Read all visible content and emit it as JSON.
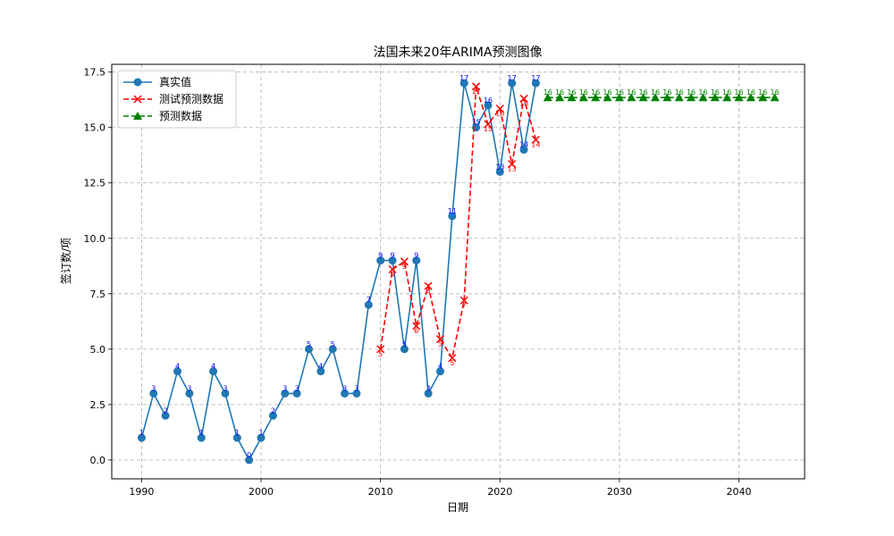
{
  "chart_data": {
    "type": "line",
    "title": "法国未来20年ARIMA预测图像",
    "xlabel": "日期",
    "ylabel": "签订数/项",
    "xlim": [
      1987.5,
      2045.5
    ],
    "ylim": [
      -0.85,
      17.85
    ],
    "xticks": [
      1990,
      2000,
      2010,
      2020,
      2030,
      2040
    ],
    "yticks": [
      0.0,
      2.5,
      5.0,
      7.5,
      10.0,
      12.5,
      15.0,
      17.5
    ],
    "ytick_labels": [
      "0.0",
      "2.5",
      "5.0",
      "7.5",
      "10.0",
      "12.5",
      "15.0",
      "17.5"
    ],
    "grid": true,
    "legend_position": "top-left",
    "series": [
      {
        "name": "真实值",
        "color": "#1f77b4",
        "style": "solid",
        "marker": "circle",
        "label_color": "#0000ff",
        "x": [
          1990,
          1991,
          1992,
          1993,
          1994,
          1995,
          1996,
          1997,
          1998,
          1999,
          2000,
          2001,
          2002,
          2003,
          2004,
          2005,
          2006,
          2007,
          2008,
          2009,
          2010,
          2011,
          2012,
          2013,
          2014,
          2015,
          2016,
          2017,
          2018,
          2019,
          2020,
          2021,
          2022,
          2023
        ],
        "values": [
          1,
          3,
          2,
          4,
          3,
          1,
          4,
          3,
          1,
          0,
          1,
          2,
          3,
          3,
          5,
          4,
          5,
          3,
          3,
          7,
          9,
          9,
          5,
          9,
          3,
          4,
          11,
          17,
          15,
          16,
          13,
          17,
          14,
          17
        ],
        "labels": [
          "1",
          "3",
          "2",
          "4",
          "3",
          "1",
          "4",
          "3",
          "1",
          "0",
          "1",
          "2",
          "3",
          "3",
          "5",
          "4",
          "5",
          "3",
          "3",
          "7",
          "9",
          "9",
          "5",
          "9",
          "3",
          "4",
          "11",
          "17",
          "15",
          "16",
          "13",
          "17",
          "14",
          "17"
        ]
      },
      {
        "name": "测试预测数据",
        "color": "#ff0000",
        "style": "dashed",
        "marker": "x",
        "label_color": "#ff0000",
        "x": [
          2010,
          2011,
          2012,
          2013,
          2014,
          2015,
          2016,
          2017,
          2018,
          2019,
          2020,
          2021,
          2022,
          2023
        ],
        "values": [
          5.0,
          8.6,
          8.95,
          6.05,
          7.85,
          5.45,
          4.6,
          7.2,
          16.85,
          15.15,
          15.85,
          13.35,
          16.3,
          14.45
        ],
        "labels": [
          "5",
          "9",
          "9",
          "6",
          "8",
          "5",
          "5",
          "7",
          "17",
          "15",
          "16",
          "13",
          "16",
          "14"
        ]
      },
      {
        "name": "预测数据",
        "color": "#008000",
        "style": "dashed",
        "marker": "triangle",
        "label_color": "#008000",
        "x": [
          2024,
          2025,
          2026,
          2027,
          2028,
          2029,
          2030,
          2031,
          2032,
          2033,
          2034,
          2035,
          2036,
          2037,
          2038,
          2039,
          2040,
          2041,
          2042,
          2043
        ],
        "values": [
          16.35,
          16.35,
          16.35,
          16.35,
          16.35,
          16.35,
          16.35,
          16.35,
          16.35,
          16.35,
          16.35,
          16.35,
          16.35,
          16.35,
          16.35,
          16.35,
          16.35,
          16.35,
          16.35,
          16.35
        ],
        "labels": [
          "16",
          "16",
          "16",
          "16",
          "16",
          "16",
          "16",
          "16",
          "16",
          "16",
          "16",
          "16",
          "16",
          "16",
          "16",
          "16",
          "16",
          "16",
          "16",
          "16"
        ]
      }
    ]
  }
}
